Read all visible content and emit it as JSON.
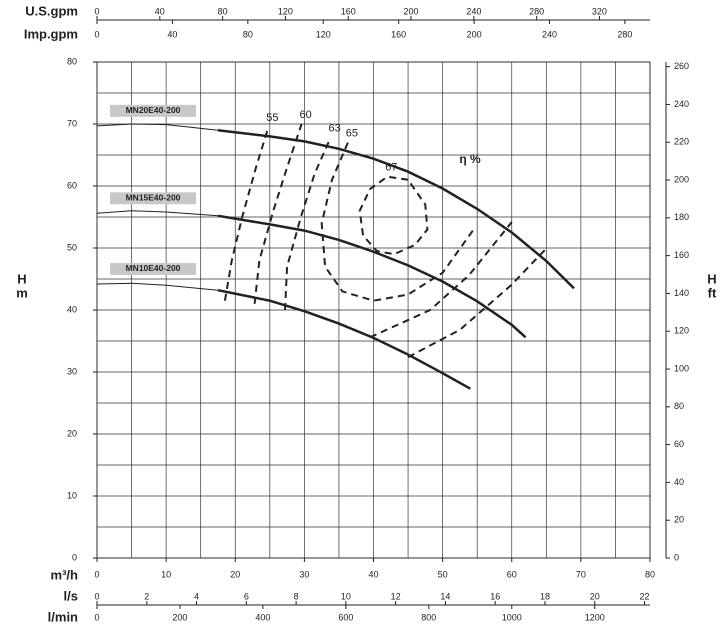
{
  "chart_data": {
    "type": "line",
    "x_label": "m³/h",
    "xlim": [
      0,
      80
    ],
    "xticks": [
      0,
      10,
      20,
      30,
      40,
      50,
      60,
      70,
      80
    ],
    "xgrid": [
      0,
      5,
      10,
      15,
      20,
      25,
      30,
      35,
      40,
      45,
      50,
      55,
      60,
      65,
      70,
      75,
      80
    ],
    "y_label": "H",
    "y_unit": "m",
    "ylim": [
      0,
      80
    ],
    "yticks": [
      0,
      10,
      20,
      30,
      40,
      50,
      60,
      70,
      80
    ],
    "ygrid": [
      0,
      5,
      10,
      15,
      20,
      25,
      30,
      35,
      40,
      45,
      50,
      55,
      60,
      65,
      70,
      75,
      80
    ],
    "y2_label": "H",
    "y2_unit": "ft",
    "y2lim": [
      0,
      262.47
    ],
    "y2ticks": [
      0,
      20,
      40,
      60,
      80,
      100,
      120,
      140,
      160,
      180,
      200,
      220,
      240,
      260
    ],
    "top_axes": [
      {
        "label": "U.S.gpm",
        "xlim": [
          0,
          352.2
        ],
        "xticks": [
          0,
          40,
          80,
          120,
          160,
          200,
          240,
          280,
          320
        ]
      },
      {
        "label": "Imp.gpm",
        "xlim": [
          0,
          293.3
        ],
        "xticks": [
          0,
          40,
          80,
          120,
          160,
          200,
          240,
          280
        ]
      }
    ],
    "bottom_axes": [
      {
        "label": "l/s",
        "xlim": [
          0,
          22.22
        ],
        "xticks": [
          0,
          2,
          4,
          6,
          8,
          10,
          12,
          14,
          16,
          18,
          20,
          22
        ]
      },
      {
        "label": "l/min",
        "xlim": [
          0,
          1333.3
        ],
        "xticks": [
          0,
          200,
          400,
          600,
          800,
          1000,
          1200
        ]
      }
    ],
    "series": [
      {
        "name": "MN20E40-200",
        "color": "#222222",
        "curves": [
          {
            "width": 1,
            "x": [
              0,
              5,
              10,
              17.5
            ],
            "values": [
              69.7,
              70,
              69.9,
              69
            ]
          },
          {
            "width": 2.5,
            "x": [
              17.5,
              25,
              30,
              35,
              40,
              45,
              50,
              55,
              60,
              65,
              69
            ],
            "values": [
              69,
              68,
              67.2,
              66,
              64.4,
              62.3,
              59.6,
              56.3,
              52.5,
              47.9,
              43.5
            ]
          }
        ]
      },
      {
        "name": "MN15E40-200",
        "color": "#222222",
        "curves": [
          {
            "width": 1,
            "x": [
              0,
              5,
              10,
              17.5
            ],
            "values": [
              55.6,
              56,
              55.8,
              55.2
            ]
          },
          {
            "width": 2.5,
            "x": [
              17.5,
              25,
              30,
              35,
              40,
              45,
              50,
              55,
              60,
              62
            ],
            "values": [
              55.2,
              53.8,
              52.8,
              51.3,
              49.4,
              47.2,
              44.6,
              41.4,
              37.6,
              35.6
            ]
          }
        ]
      },
      {
        "name": "MN10E40-200",
        "color": "#222222",
        "curves": [
          {
            "width": 1,
            "x": [
              0,
              5,
              10,
              17.5
            ],
            "values": [
              44.2,
              44.3,
              44,
              43.2
            ]
          },
          {
            "width": 2.5,
            "x": [
              17.5,
              25,
              30,
              35,
              40,
              45,
              50,
              54
            ],
            "values": [
              43.2,
              41.5,
              39.8,
              37.8,
              35.5,
              32.8,
              29.8,
              27.3
            ]
          }
        ]
      }
    ],
    "efficiency_label": "η %",
    "efficiency_contours": [
      {
        "label": "55",
        "x": [
          18.5,
          19.5,
          21,
          23,
          24.8
        ],
        "values": [
          41.5,
          48,
          55,
          63,
          69.5
        ]
      },
      {
        "label": "60",
        "x": [
          22.8,
          23.5,
          25.5,
          27.5,
          29.6,
          null,
          45,
          52.5,
          59.9,
          64.8
        ],
        "values": [
          41,
          48,
          56,
          63,
          70,
          null,
          32.4,
          36.8,
          44,
          49.7
        ]
      },
      {
        "label": "63",
        "x": [
          27.2,
          27.5,
          29.5,
          31.5,
          33.8,
          null,
          39.5,
          48.2,
          53.8,
          60
        ],
        "values": [
          40,
          47,
          55,
          62,
          67.8,
          null,
          35.6,
          40,
          45.6,
          54.2
        ]
      },
      {
        "label": "65",
        "x": [
          36.3,
          34,
          32.5,
          33,
          35.5,
          40,
          45,
          50,
          54.5
        ],
        "values": [
          67,
          61,
          54,
          47,
          43,
          41.5,
          42.5,
          46,
          53
        ]
      },
      {
        "label": "67",
        "x": [
          45,
          42,
          39.5,
          38,
          38.5,
          40.5,
          43,
          46,
          47.8,
          47.5,
          45
        ],
        "values": [
          61,
          61.5,
          59.5,
          56,
          52,
          49.5,
          49,
          50.5,
          53,
          57,
          61
        ]
      }
    ]
  }
}
